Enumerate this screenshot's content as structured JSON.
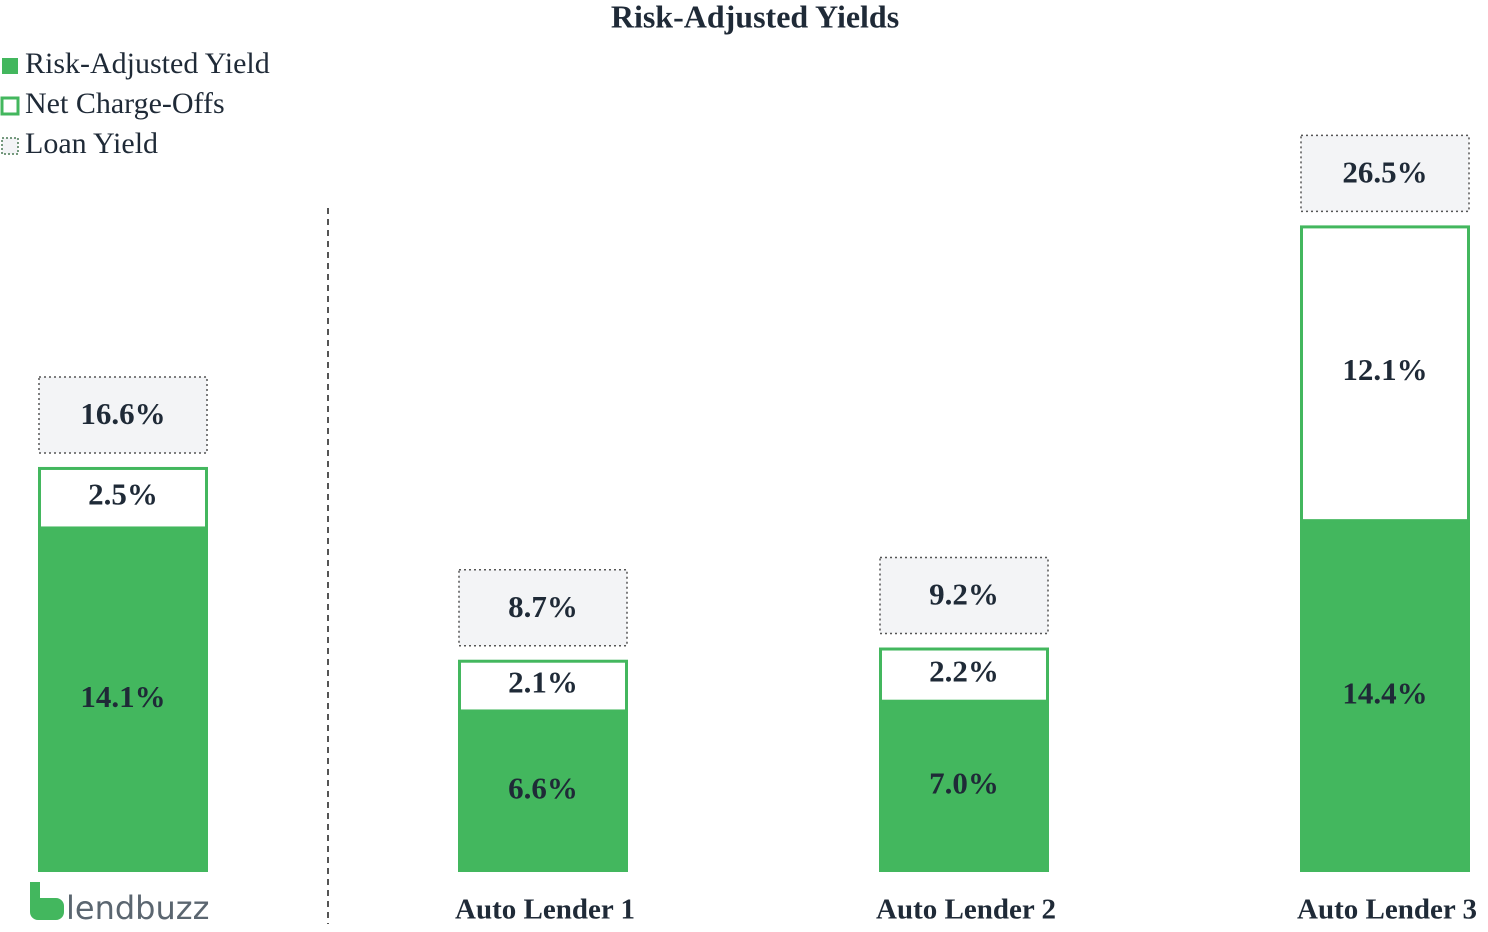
{
  "chart_data": {
    "type": "bar",
    "title": "Risk-Adjusted Yields",
    "categories": [
      "lendbuzz",
      "Auto Lender 1",
      "Auto Lender 2",
      "Auto Lender 3"
    ],
    "series": [
      {
        "name": "Risk-Adjusted Yield",
        "color": "#43b75e",
        "values": [
          14.1,
          6.6,
          7.0,
          14.4
        ],
        "value_labels": [
          "14.1%",
          "6.6%",
          "7.0%",
          "14.4%"
        ]
      },
      {
        "name": "Net Charge-Offs",
        "color": "#43b75e",
        "values": [
          2.5,
          2.1,
          2.2,
          12.1
        ],
        "value_labels": [
          "2.5%",
          "2.1%",
          "2.2%",
          "12.1%"
        ]
      },
      {
        "name": "Loan Yield",
        "color": "#f3f4f6",
        "values": [
          16.6,
          8.7,
          9.2,
          26.5
        ],
        "value_labels": [
          "16.6%",
          "8.7%",
          "9.2%",
          "26.5%"
        ]
      }
    ],
    "legend": "top-left"
  }
}
